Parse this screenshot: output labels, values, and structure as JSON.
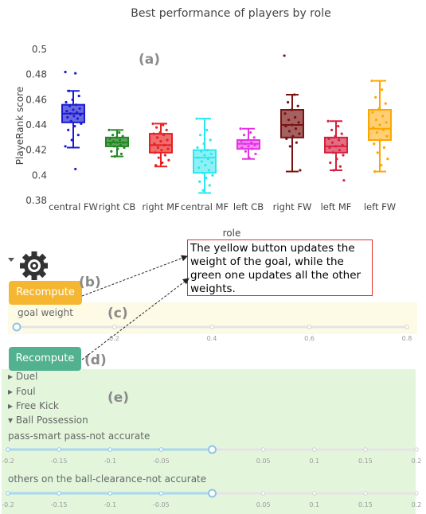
{
  "chart_data": {
    "type": "box",
    "title": "Best performance of players by role",
    "xlabel": "role",
    "ylabel": "PlayeRank score",
    "ylim": [
      0.38,
      0.5
    ],
    "yticks": [
      "0.5",
      "0.48",
      "0.46",
      "0.44",
      "0.42",
      "0.4",
      "0.38"
    ],
    "categories": [
      "central FW",
      "right CB",
      "right MF",
      "central MF",
      "left CB",
      "right FW",
      "left MF",
      "left FW"
    ],
    "colors": [
      "#1a1ad6",
      "#1e8a1e",
      "#e82020",
      "#27e8f0",
      "#e632e6",
      "#7a1212",
      "#d6213c",
      "#ffa500"
    ],
    "fills": [
      "#6a6adf",
      "#63a063",
      "#ef6d6d",
      "#8ef0f5",
      "#ef90ef",
      "#a56060",
      "#e36d84",
      "#ffcf75"
    ],
    "boxes": [
      {
        "min": 0.422,
        "q1": 0.442,
        "median": 0.449,
        "q3": 0.456,
        "max": 0.467
      },
      {
        "min": 0.415,
        "q1": 0.423,
        "median": 0.426,
        "q3": 0.43,
        "max": 0.436
      },
      {
        "min": 0.407,
        "q1": 0.418,
        "median": 0.424,
        "q3": 0.433,
        "max": 0.441
      },
      {
        "min": 0.386,
        "q1": 0.402,
        "median": 0.414,
        "q3": 0.42,
        "max": 0.445
      },
      {
        "min": 0.413,
        "q1": 0.421,
        "median": 0.425,
        "q3": 0.428,
        "max": 0.437
      },
      {
        "min": 0.403,
        "q1": 0.43,
        "median": 0.44,
        "q3": 0.452,
        "max": 0.464
      },
      {
        "min": 0.404,
        "q1": 0.418,
        "median": 0.423,
        "q3": 0.43,
        "max": 0.443
      },
      {
        "min": 0.403,
        "q1": 0.428,
        "median": 0.437,
        "q3": 0.452,
        "max": 0.475
      }
    ],
    "points": [
      [
        0.482,
        0.481,
        0.467,
        0.463,
        0.46,
        0.458,
        0.456,
        0.455,
        0.453,
        0.452,
        0.451,
        0.45,
        0.449,
        0.448,
        0.447,
        0.446,
        0.445,
        0.443,
        0.441,
        0.439,
        0.436,
        0.432,
        0.428,
        0.423,
        0.405
      ],
      [
        0.436,
        0.434,
        0.432,
        0.431,
        0.43,
        0.429,
        0.428,
        0.427,
        0.426,
        0.426,
        0.425,
        0.424,
        0.423,
        0.422,
        0.421,
        0.419,
        0.417,
        0.415
      ],
      [
        0.441,
        0.44,
        0.438,
        0.436,
        0.434,
        0.433,
        0.432,
        0.43,
        0.428,
        0.427,
        0.425,
        0.424,
        0.422,
        0.421,
        0.42,
        0.418,
        0.416,
        0.414,
        0.412,
        0.41,
        0.408
      ],
      [
        0.445,
        0.436,
        0.432,
        0.428,
        0.425,
        0.422,
        0.42,
        0.419,
        0.417,
        0.416,
        0.414,
        0.413,
        0.411,
        0.41,
        0.408,
        0.406,
        0.404,
        0.402,
        0.4,
        0.398,
        0.395,
        0.392,
        0.388
      ],
      [
        0.437,
        0.434,
        0.432,
        0.43,
        0.428,
        0.427,
        0.426,
        0.425,
        0.424,
        0.423,
        0.422,
        0.421,
        0.419,
        0.417,
        0.414
      ],
      [
        0.495,
        0.464,
        0.458,
        0.455,
        0.452,
        0.449,
        0.446,
        0.444,
        0.442,
        0.44,
        0.439,
        0.437,
        0.435,
        0.433,
        0.431,
        0.429,
        0.426,
        0.423,
        0.404
      ],
      [
        0.443,
        0.439,
        0.436,
        0.433,
        0.431,
        0.429,
        0.428,
        0.426,
        0.424,
        0.423,
        0.422,
        0.42,
        0.418,
        0.416,
        0.413,
        0.41,
        0.407,
        0.404,
        0.396
      ],
      [
        0.475,
        0.468,
        0.462,
        0.457,
        0.453,
        0.45,
        0.447,
        0.444,
        0.442,
        0.44,
        0.438,
        0.436,
        0.434,
        0.431,
        0.428,
        0.425,
        0.422,
        0.418,
        0.413,
        0.408,
        0.403
      ]
    ]
  },
  "panels": {
    "a": "(a)",
    "b": "(b)",
    "c": "(c)",
    "d": "(d)",
    "e": "(e)"
  },
  "controls": {
    "settings_icon": "gear-icon",
    "recompute_yellow": "Recompute",
    "recompute_green": "Recompute",
    "yellow_color": "#f5b731",
    "green_color": "#52b18f",
    "annotation": "The yellow button updates the weight of the goal, while the green one updates all the other weights.",
    "goal_weight_label": "goal weight",
    "goal_slider": {
      "min": 0,
      "max": 0.8,
      "value": 0,
      "ticks": [
        "0.2",
        "0.4",
        "0.6",
        "0.8"
      ]
    },
    "categories": [
      {
        "label": "Duel",
        "expanded": false
      },
      {
        "label": "Foul",
        "expanded": false
      },
      {
        "label": "Free Kick",
        "expanded": false
      },
      {
        "label": "Ball Possession",
        "expanded": true
      }
    ],
    "sliders": [
      {
        "label": "pass-smart pass-not accurate",
        "min": -0.2,
        "max": 0.2,
        "value": 0,
        "ticks": [
          "-0.2",
          "-0.15",
          "-0.1",
          "-0.05",
          "0.05",
          "0.1",
          "0.15",
          "0.2"
        ]
      },
      {
        "label": "others on the ball-clearance-not accurate",
        "min": -0.2,
        "max": 0.2,
        "value": 0,
        "ticks": [
          "-0.2",
          "-0.15",
          "-0.1",
          "-0.05",
          "0.05",
          "0.1",
          "0.15",
          "0.2"
        ]
      }
    ]
  }
}
